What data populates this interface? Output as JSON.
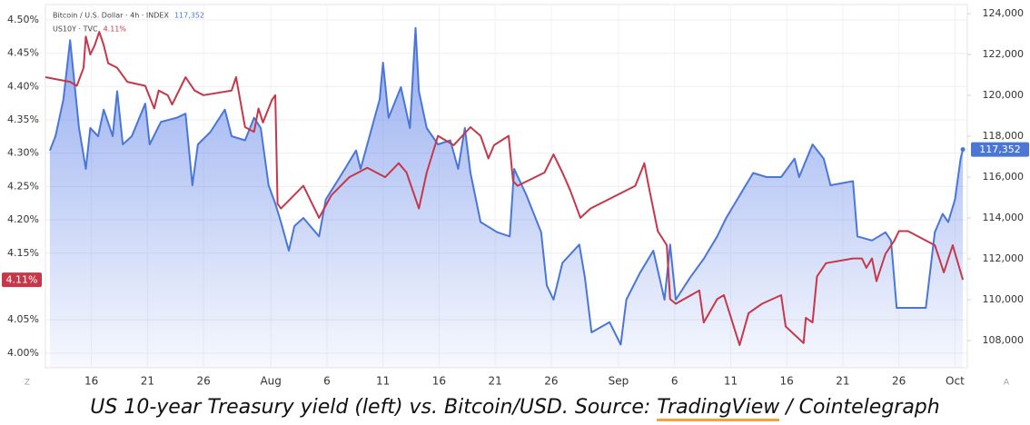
{
  "chart_data": {
    "type": "line",
    "legend": [
      {
        "text": "Bitcoin / U.S. Dollar · 4h · INDEX",
        "series": 0
      },
      {
        "text": "US10Y · TVC",
        "series": 1
      }
    ],
    "corner_labels": [
      "Z",
      "A"
    ],
    "caption": {
      "prefix": "US 10-year Treasury yield (left) vs. Bitcoin/USD. Source: ",
      "link": "TradingView",
      "suffix": " / Cointelegraph"
    },
    "xlim": [
      11.9,
      94.1
    ],
    "xticks": [
      16,
      21,
      26,
      {
        "value": 32,
        "label": "Aug"
      },
      {
        "value": 37,
        "label": "6"
      },
      {
        "value": 42,
        "label": "11"
      },
      {
        "value": 47,
        "label": "16"
      },
      {
        "value": 52,
        "label": "21"
      },
      {
        "value": 57,
        "label": "26"
      },
      {
        "value": 63,
        "label": "Sep"
      },
      {
        "value": 68,
        "label": "6"
      },
      {
        "value": 73,
        "label": "11"
      },
      {
        "value": 78,
        "label": "16"
      },
      {
        "value": 83,
        "label": "21"
      },
      {
        "value": 88,
        "label": "26"
      },
      {
        "value": 93,
        "label": "Oct"
      }
    ],
    "ylim": [
      3.978,
      4.523
    ],
    "yticks": [
      {
        "value": 4.0,
        "label": "4.00%"
      },
      {
        "value": 4.05,
        "label": "4.05%"
      },
      {
        "value": 4.15,
        "label": "4.15%"
      },
      {
        "value": 4.2,
        "label": "4.20%"
      },
      {
        "value": 4.25,
        "label": "4.25%"
      },
      {
        "value": 4.3,
        "label": "4.30%"
      },
      {
        "value": 4.35,
        "label": "4.35%"
      },
      {
        "value": 4.4,
        "label": "4.40%"
      },
      {
        "value": 4.45,
        "label": "4.45%"
      },
      {
        "value": 4.5,
        "label": "4.50%"
      }
    ],
    "y2lim": [
      106667,
      124444
    ],
    "y2ticks": [
      {
        "value": 108000,
        "label": "108,000"
      },
      {
        "value": 110000,
        "label": "110,000"
      },
      {
        "value": 112000,
        "label": "112,000"
      },
      {
        "value": 114000,
        "label": "114,000"
      },
      {
        "value": 116000,
        "label": "116,000"
      },
      {
        "value": 118000,
        "label": "118,000"
      },
      {
        "value": 120000,
        "label": "120,000"
      },
      {
        "value": 122000,
        "label": "122,000"
      },
      {
        "value": 124000,
        "label": "124,000"
      }
    ],
    "grid": true,
    "series": [
      {
        "name": "Bitcoin / U.S. Dollar",
        "color": "#4a77d6",
        "axis": "y2",
        "area": true,
        "last_label": "117,352",
        "x": [
          12.3,
          12.8,
          13.5,
          14.1,
          14.9,
          15.5,
          15.9,
          16.6,
          17.1,
          17.9,
          18.3,
          18.8,
          19.6,
          20.8,
          21.2,
          22.2,
          23.6,
          24.4,
          25.0,
          25.5,
          26.6,
          27.9,
          28.5,
          29.7,
          30.5,
          31.1,
          31.8,
          32.4,
          32.9,
          33.6,
          34.1,
          34.9,
          36.3,
          36.9,
          38.6,
          39.6,
          40.0,
          41.0,
          41.7,
          42.0,
          42.5,
          43.6,
          44.4,
          44.9,
          45.2,
          45.9,
          46.9,
          48.0,
          48.7,
          49.3,
          49.8,
          50.7,
          52.2,
          53.3,
          53.7,
          54.8,
          56.1,
          56.6,
          57.2,
          58.0,
          59.5,
          60.0,
          60.6,
          62.2,
          63.2,
          63.7,
          64.9,
          66.1,
          67.1,
          67.6,
          68.1,
          69.4,
          70.6,
          71.8,
          72.6,
          73.8,
          75.0,
          76.2,
          77.5,
          78.7,
          79.1,
          80.3,
          81.3,
          81.9,
          83.9,
          84.3,
          85.6,
          86.8,
          87.3,
          87.8,
          89.0,
          90.4,
          91.2,
          91.9,
          92.4,
          93.0,
          93.5,
          93.7
        ],
        "values": [
          117300,
          118000,
          119800,
          122700,
          118400,
          116400,
          118400,
          118000,
          119300,
          118000,
          120200,
          117600,
          118000,
          119600,
          117600,
          118700,
          118900,
          119100,
          115600,
          117600,
          118200,
          119300,
          118000,
          117800,
          118900,
          118400,
          115600,
          114700,
          113800,
          112400,
          113600,
          114000,
          113100,
          114900,
          116400,
          117300,
          116400,
          118400,
          119800,
          121600,
          118900,
          120400,
          118400,
          123300,
          120200,
          118400,
          117600,
          117800,
          116400,
          118400,
          116200,
          113800,
          113300,
          113100,
          116400,
          115100,
          113300,
          110700,
          110000,
          111800,
          112700,
          111100,
          108400,
          108900,
          107800,
          110000,
          111300,
          112400,
          110000,
          112700,
          110000,
          111100,
          112000,
          113100,
          114000,
          115100,
          116200,
          116000,
          116000,
          116900,
          116000,
          117600,
          116900,
          115600,
          115800,
          113100,
          112900,
          113300,
          112900,
          109600,
          109600,
          109600,
          113300,
          114200,
          113800,
          114900,
          116900,
          117352
        ]
      },
      {
        "name": "US10Y",
        "color": "#c4384a",
        "last_label": "4.11%",
        "x": [
          11.9,
          14.1,
          14.7,
          15.3,
          15.5,
          15.9,
          16.3,
          16.7,
          17.1,
          17.5,
          18.3,
          19.2,
          20.8,
          21.6,
          22.0,
          22.8,
          23.2,
          24.4,
          25.2,
          26.0,
          28.5,
          28.9,
          29.7,
          30.5,
          30.9,
          31.3,
          32.1,
          32.4,
          32.6,
          32.9,
          34.9,
          36.3,
          37.4,
          39.0,
          40.6,
          42.2,
          43.4,
          44.1,
          45.2,
          45.9,
          46.9,
          48.3,
          49.8,
          50.7,
          51.4,
          51.9,
          53.2,
          53.6,
          54.0,
          56.4,
          57.2,
          58.0,
          58.7,
          59.6,
          60.5,
          64.5,
          65.3,
          65.6,
          66.5,
          67.3,
          67.6,
          68.1,
          70.2,
          70.6,
          71.8,
          72.4,
          73.4,
          73.8,
          74.6,
          75.8,
          77.5,
          77.9,
          79.5,
          79.7,
          80.3,
          80.7,
          81.5,
          83.9,
          84.7,
          85.1,
          85.6,
          86.0,
          86.8,
          87.6,
          88.0,
          88.8,
          91.2,
          91.6,
          92.0,
          92.8,
          93.7
        ],
        "values": [
          4.414,
          4.407,
          4.401,
          4.428,
          4.475,
          4.448,
          4.462,
          4.482,
          4.462,
          4.435,
          4.428,
          4.407,
          4.401,
          4.367,
          4.394,
          4.387,
          4.373,
          4.414,
          4.394,
          4.387,
          4.394,
          4.414,
          4.339,
          4.332,
          4.367,
          4.346,
          4.38,
          4.387,
          4.224,
          4.217,
          4.251,
          4.203,
          4.237,
          4.264,
          4.278,
          4.264,
          4.285,
          4.271,
          4.217,
          4.271,
          4.326,
          4.312,
          4.339,
          4.326,
          4.292,
          4.312,
          4.326,
          4.258,
          4.251,
          4.271,
          4.298,
          4.271,
          4.244,
          4.203,
          4.217,
          4.251,
          4.285,
          4.258,
          4.183,
          4.162,
          4.081,
          4.074,
          4.094,
          4.046,
          4.081,
          4.087,
          4.033,
          4.012,
          4.06,
          4.074,
          4.087,
          4.04,
          4.015,
          4.053,
          4.046,
          4.115,
          4.135,
          4.142,
          4.142,
          4.128,
          4.142,
          4.108,
          4.149,
          4.169,
          4.183,
          4.183,
          4.162,
          4.142,
          4.121,
          4.162,
          4.11
        ]
      }
    ]
  }
}
